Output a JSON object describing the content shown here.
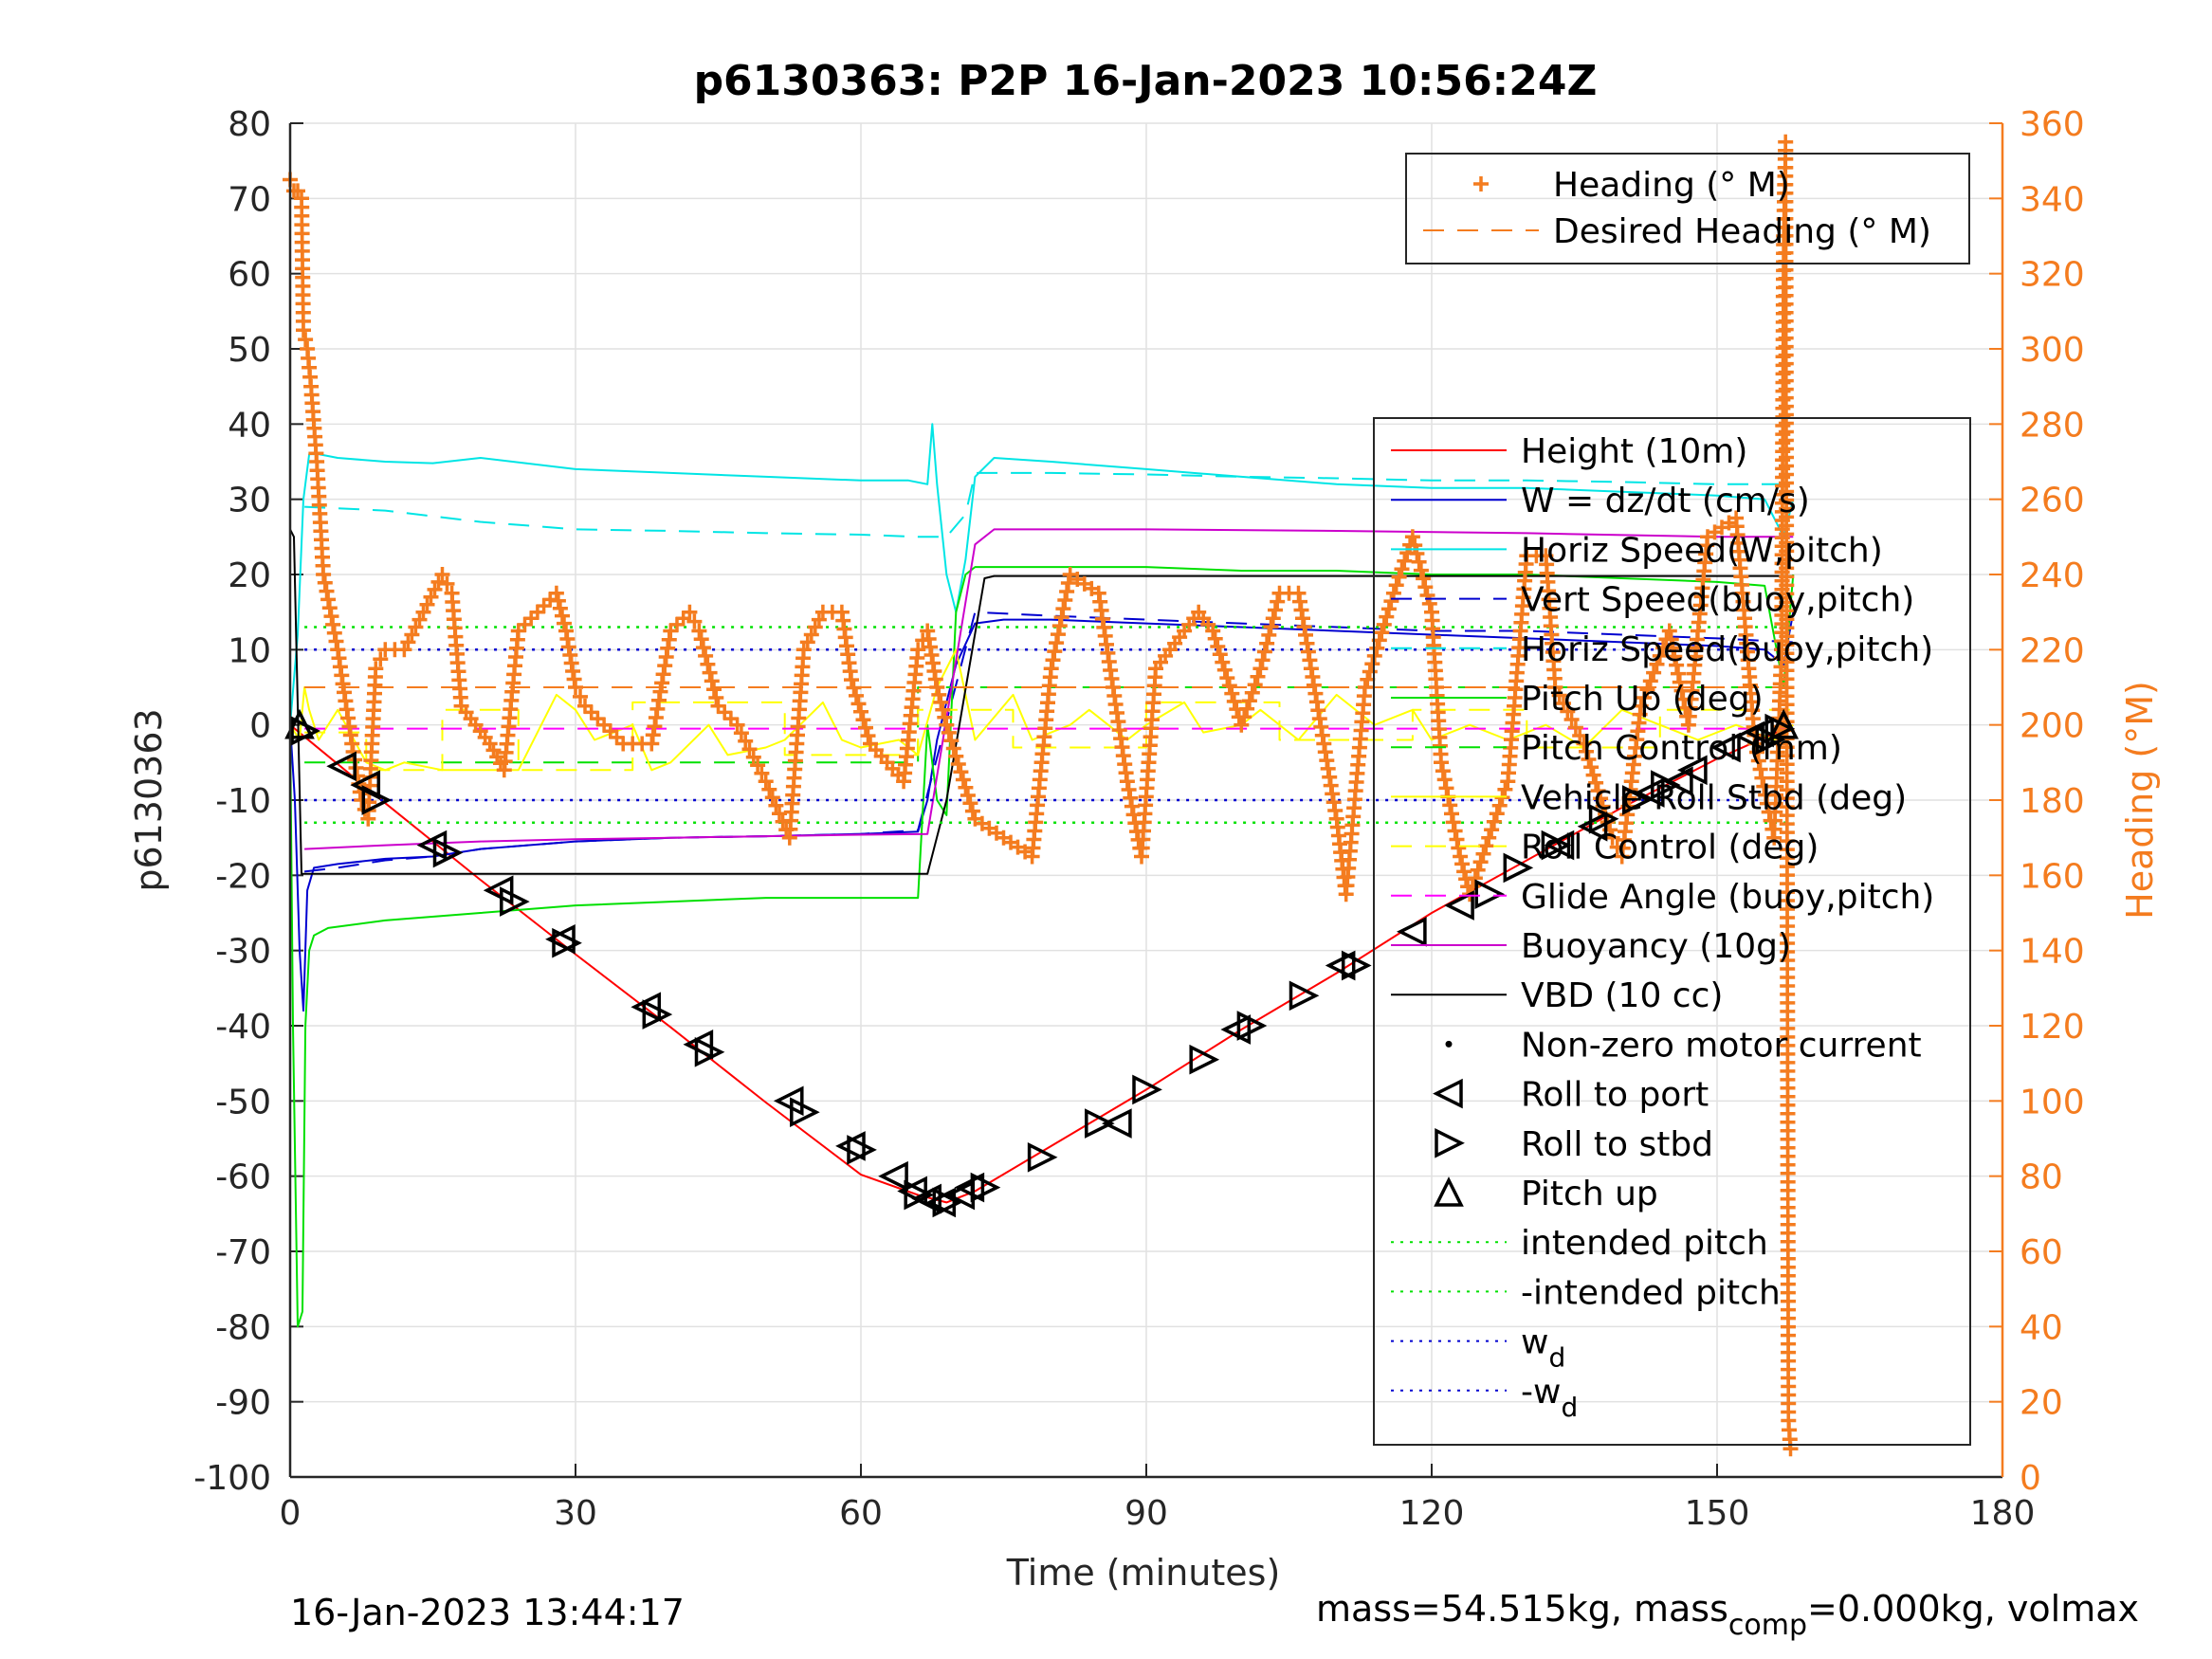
{
  "chart_data": {
    "type": "line",
    "title": "p6130363: P2P 16-Jan-2023 10:56:24Z",
    "xlabel": "Time (minutes)",
    "ylabel": "p6130363",
    "y2label": "Heading (°M)",
    "xlim": [
      0,
      180
    ],
    "ylim": [
      -100,
      80
    ],
    "y2lim": [
      0,
      360
    ],
    "xticks": [
      "0",
      "30",
      "60",
      "90",
      "120",
      "150",
      "180"
    ],
    "yticks": [
      "80",
      "70",
      "60",
      "50",
      "40",
      "30",
      "20",
      "10",
      "0",
      "-10",
      "-20",
      "-30",
      "-40",
      "-50",
      "-60",
      "-70",
      "-80",
      "-90",
      "-100"
    ],
    "y2ticks": [
      "360",
      "340",
      "320",
      "300",
      "280",
      "260",
      "240",
      "220",
      "200",
      "180",
      "160",
      "140",
      "120",
      "100",
      "80",
      "60",
      "40",
      "20",
      "0"
    ],
    "grid": true,
    "footer_left": "16-Jan-2023 13:44:17",
    "footer_right": {
      "pre": "mass=54.515kg, mass",
      "sub": "comp",
      "post": "=0.000kg, volmax"
    },
    "legend_top": {
      "placement": "top-right",
      "entries": [
        {
          "label": "Heading (° M)",
          "style": "marker-plus",
          "color": "#f47c1f"
        },
        {
          "label": "Desired Heading (° M)",
          "style": "dashed",
          "color": "#f47c1f"
        }
      ]
    },
    "legend_main": {
      "placement": "right",
      "entries": [
        {
          "label": "Height (10m)",
          "style": "solid",
          "color": "#ff0000"
        },
        {
          "label": "W = dz/dt (cm/s)",
          "style": "solid",
          "color": "#0000d0"
        },
        {
          "label": "Horiz Speed(W,pitch)",
          "style": "solid",
          "color": "#00e5e5"
        },
        {
          "label": "Vert Speed(buoy,pitch)",
          "style": "dashed",
          "color": "#0000d0"
        },
        {
          "label": "Horiz Speed(buoy,pitch)",
          "style": "dashed",
          "color": "#00e5e5"
        },
        {
          "label": "Pitch Up (deg)",
          "style": "solid",
          "color": "#00e000"
        },
        {
          "label": "Pitch Control (mm)",
          "style": "dashed",
          "color": "#00e000"
        },
        {
          "label": "Vehicle Roll Stbd (deg)",
          "style": "solid",
          "color": "#ffff00"
        },
        {
          "label": "Roll Control (deg)",
          "style": "dashed",
          "color": "#ffff00"
        },
        {
          "label": "Glide Angle (buoy,pitch)",
          "style": "dashed",
          "color": "#ff00ff"
        },
        {
          "label": "Buoyancy (10g)",
          "style": "solid",
          "color": "#cc00cc"
        },
        {
          "label": "VBD (10 cc)",
          "style": "solid",
          "color": "#000000"
        },
        {
          "label": "Non-zero motor current",
          "style": "dot",
          "color": "#000000"
        },
        {
          "label": "Roll to port",
          "style": "tri-left",
          "color": "#000000"
        },
        {
          "label": "Roll to stbd",
          "style": "tri-right",
          "color": "#000000"
        },
        {
          "label": "Pitch up",
          "style": "tri-up",
          "color": "#000000"
        },
        {
          "label": "intended pitch",
          "style": "dotted",
          "color": "#00e000"
        },
        {
          "label": "-intended pitch",
          "style": "dotted",
          "color": "#00e000"
        },
        {
          "label": "w",
          "sub": "d",
          "style": "dotted",
          "color": "#0000d0"
        },
        {
          "label": "-w",
          "sub": "d",
          "style": "dotted",
          "color": "#0000d0"
        }
      ]
    },
    "series": [
      {
        "name": "Height (10m)",
        "axis": "left",
        "color": "#ff0000",
        "style": "solid",
        "x": [
          0,
          10,
          20,
          30,
          40,
          50,
          60,
          66,
          69,
          72,
          80,
          90,
          100,
          110,
          120,
          130,
          140,
          150,
          158
        ],
        "y": [
          0,
          -10.4,
          -20.6,
          -30.5,
          -40.2,
          -50.2,
          -59.8,
          -62.5,
          -63.5,
          -62,
          -56,
          -48.5,
          -40.5,
          -33,
          -25,
          -18,
          -11,
          -4.5,
          0
        ]
      },
      {
        "name": "W = dz/dt (cm/s)",
        "axis": "left",
        "color": "#0000d0",
        "style": "solid",
        "x": [
          0,
          0.5,
          1.0,
          1.4,
          1.8,
          2.5,
          5,
          10,
          15,
          20,
          30,
          40,
          50,
          60,
          66,
          67,
          68,
          70,
          72,
          75,
          80,
          90,
          100,
          110,
          120,
          130,
          140,
          150,
          155,
          157,
          158
        ],
        "y": [
          0,
          -10,
          -30,
          -38,
          -22,
          -19,
          -18.5,
          -17.8,
          -17.5,
          -16.5,
          -15.5,
          -15,
          -14.8,
          -14.5,
          -14.2,
          -10,
          -2,
          8,
          13.5,
          14,
          14,
          13.5,
          13,
          12.5,
          12,
          11.5,
          11,
          10.5,
          10,
          8,
          15
        ]
      },
      {
        "name": "Horiz Speed(W,pitch)",
        "axis": "left",
        "color": "#00e5e5",
        "style": "solid",
        "x": [
          0,
          0.8,
          1.4,
          2,
          3,
          5,
          10,
          15,
          20,
          30,
          40,
          50,
          60,
          65,
          67,
          67.5,
          68,
          69,
          70,
          71,
          72,
          74,
          80,
          90,
          100,
          110,
          120,
          130,
          140,
          150,
          155,
          157,
          158
        ],
        "y": [
          0,
          12,
          30,
          36,
          36,
          35.5,
          35,
          34.8,
          35.5,
          34,
          33.5,
          33,
          32.5,
          32.5,
          32,
          40,
          32,
          20,
          15,
          22,
          33,
          35.5,
          35,
          34,
          33,
          32,
          31.5,
          31.5,
          31,
          30.5,
          30,
          25,
          30
        ]
      },
      {
        "name": "Vert Speed(buoy,pitch)",
        "axis": "left",
        "color": "#0000d0",
        "style": "dashed",
        "x": [
          1.5,
          5,
          10,
          15,
          20,
          30,
          40,
          50,
          60,
          66,
          72,
          80,
          90,
          100,
          110,
          120,
          130,
          140,
          150,
          158
        ],
        "y": [
          -19.5,
          -19,
          -18,
          -17.5,
          -16.5,
          -15.5,
          -15,
          -14.8,
          -14.5,
          -14,
          15,
          14.5,
          14,
          13.5,
          13,
          12.5,
          12.5,
          12,
          11.5,
          11
        ]
      },
      {
        "name": "Horiz Speed(buoy,pitch)",
        "axis": "left",
        "color": "#00e5e5",
        "style": "dashed",
        "x": [
          1.5,
          5,
          10,
          20,
          30,
          40,
          50,
          60,
          66,
          69,
          71,
          72,
          80,
          90,
          100,
          110,
          120,
          130,
          140,
          150,
          158
        ],
        "y": [
          29,
          28.8,
          28.5,
          27,
          26,
          25.8,
          25.5,
          25.3,
          25,
          25,
          28,
          33.5,
          33.5,
          33.3,
          33,
          32.8,
          32.5,
          32.5,
          32.3,
          32,
          32
        ]
      },
      {
        "name": "Pitch Up (deg)",
        "axis": "left",
        "color": "#00e000",
        "style": "solid",
        "x": [
          0,
          0.3,
          0.8,
          1.3,
          1.6,
          2,
          2.5,
          4,
          10,
          20,
          30,
          40,
          50,
          60,
          66,
          67,
          68,
          69,
          70,
          71,
          72,
          80,
          90,
          100,
          110,
          120,
          130,
          140,
          150,
          155,
          157,
          158
        ],
        "y": [
          0,
          -40,
          -80,
          -78,
          -40,
          -30,
          -28,
          -27,
          -26,
          -25,
          -24,
          -23.5,
          -23,
          -23,
          -23,
          0,
          -10,
          -12,
          15,
          20,
          21,
          21,
          21,
          20.5,
          20.5,
          20,
          20,
          19.5,
          19,
          18.5,
          5,
          20
        ]
      },
      {
        "name": "Pitch Control (mm)",
        "axis": "left",
        "color": "#00e000",
        "style": "dashed",
        "x": [
          1.5,
          66,
          66,
          158
        ],
        "y": [
          -5,
          -5,
          5,
          5
        ]
      },
      {
        "name": "Vehicle Roll Stbd (deg)",
        "axis": "left",
        "color": "#ffff00",
        "style": "solid",
        "x": [
          0,
          1,
          1.5,
          2,
          3,
          5,
          8,
          10,
          12,
          16,
          20,
          24,
          28,
          30,
          32,
          36,
          38,
          40,
          44,
          46,
          50,
          52,
          56,
          58,
          60,
          64,
          66,
          68,
          70,
          72,
          76,
          78,
          82,
          84,
          88,
          90,
          94,
          96,
          100,
          102,
          106,
          110,
          114,
          118,
          120,
          124,
          128,
          132,
          136,
          140,
          144,
          148,
          152,
          156,
          158
        ],
        "y": [
          0,
          -2,
          5,
          2,
          -2,
          2,
          -5,
          -6,
          -5,
          -6,
          -6,
          -6,
          4,
          2,
          -2,
          0,
          -6,
          -5,
          0,
          -4,
          -3,
          -2,
          3,
          -2,
          -3,
          -2,
          -4,
          5,
          10,
          -2,
          4,
          -2,
          0,
          2,
          -2,
          0,
          3,
          -1,
          0,
          2,
          -2,
          4,
          0,
          2,
          -2,
          0,
          -2,
          0,
          -3,
          2,
          0,
          -2,
          0,
          -2,
          0
        ]
      },
      {
        "name": "Roll Control (deg)",
        "axis": "left",
        "color": "#ffff00",
        "style": "dashed",
        "x": [
          1.5,
          8,
          8,
          16,
          16,
          24,
          24,
          36,
          36,
          52,
          52,
          66,
          66,
          76,
          76,
          90,
          90,
          104,
          104,
          118,
          118,
          130,
          130,
          144,
          144,
          158
        ],
        "y": [
          -1,
          -1,
          -6,
          -6,
          2,
          2,
          -6,
          -6,
          3,
          3,
          -4,
          -4,
          2,
          2,
          -3,
          -3,
          3,
          3,
          -2,
          -2,
          2,
          2,
          -3,
          -3,
          2,
          2
        ]
      },
      {
        "name": "Glide Angle (buoy,pitch)",
        "axis": "left",
        "color": "#ff00ff",
        "style": "dashed",
        "x": [
          1.5,
          158
        ],
        "y": [
          -0.5,
          -0.5
        ]
      },
      {
        "name": "Buoyancy (10g)",
        "axis": "left",
        "color": "#cc00cc",
        "style": "solid",
        "x": [
          1.5,
          10,
          20,
          30,
          40,
          50,
          60,
          67,
          72,
          74,
          90,
          110,
          130,
          150,
          158
        ],
        "y": [
          -16.5,
          -16,
          -15.5,
          -15.2,
          -15,
          -14.8,
          -14.6,
          -14.5,
          24,
          26,
          26,
          25.8,
          25.5,
          25,
          25
        ]
      },
      {
        "name": "VBD (10 cc)",
        "axis": "left",
        "color": "#000000",
        "style": "solid",
        "x": [
          0,
          0.4,
          1.2,
          1.5,
          10,
          30,
          50,
          67,
          69,
          73,
          74,
          158
        ],
        "y": [
          26,
          25,
          -19.8,
          -19.8,
          -19.8,
          -19.8,
          -19.8,
          -19.8,
          -10,
          19.5,
          19.8,
          19.8
        ]
      },
      {
        "name": "intended pitch",
        "axis": "left",
        "color": "#00e000",
        "style": "dotted",
        "x": [
          1.5,
          158
        ],
        "y": [
          13,
          13
        ]
      },
      {
        "name": "-intended pitch",
        "axis": "left",
        "color": "#00e000",
        "style": "dotted",
        "x": [
          1.5,
          158
        ],
        "y": [
          -13,
          -13
        ]
      },
      {
        "name": "w_d",
        "axis": "left",
        "color": "#0000d0",
        "style": "dotted",
        "x": [
          1.5,
          158
        ],
        "y": [
          10,
          10
        ]
      },
      {
        "name": "-w_d",
        "axis": "left",
        "color": "#0000d0",
        "style": "dotted",
        "x": [
          1.5,
          158
        ],
        "y": [
          -10,
          -10
        ]
      },
      {
        "name": "Desired Heading (° M)",
        "axis": "right",
        "color": "#f47c1f",
        "style": "dashed",
        "x": [
          1.5,
          158
        ],
        "y": [
          210,
          210
        ]
      }
    ],
    "heading_knots": {
      "x": [
        0,
        0.4,
        0.8,
        1.2,
        1.4,
        1.8,
        2.2,
        2.8,
        3.5,
        5,
        6.5,
        7.5,
        8.2,
        9,
        10,
        12,
        14,
        16,
        17,
        18,
        21,
        22.5,
        24,
        26,
        28,
        29,
        30,
        31,
        33,
        35,
        38,
        40,
        42,
        43,
        45,
        47,
        50,
        52.5,
        54,
        56,
        58,
        59,
        61,
        64.5,
        66,
        67,
        68,
        69,
        72,
        75,
        78,
        80,
        82,
        85,
        88,
        89.5,
        91,
        94,
        95.5,
        97,
        100,
        102,
        104,
        106,
        110,
        111,
        113,
        116,
        118,
        120,
        121,
        123,
        124,
        128,
        130,
        132,
        133,
        136,
        139,
        140,
        142,
        145,
        147,
        149,
        152,
        154,
        156,
        156.8,
        157,
        157.2,
        157.5,
        157.8
      ],
      "y": [
        345,
        342,
        342,
        340,
        305,
        300,
        290,
        270,
        240,
        220,
        195,
        180,
        175,
        215,
        220,
        220,
        230,
        240,
        235,
        205,
        195,
        188,
        225,
        230,
        235,
        225,
        210,
        205,
        200,
        195,
        195,
        225,
        230,
        225,
        205,
        200,
        185,
        170,
        220,
        230,
        230,
        212,
        195,
        185,
        220,
        225,
        210,
        200,
        175,
        170,
        165,
        215,
        240,
        235,
        185,
        165,
        215,
        225,
        230,
        225,
        200,
        215,
        235,
        235,
        175,
        155,
        210,
        235,
        250,
        230,
        190,
        165,
        155,
        185,
        245,
        245,
        210,
        195,
        170,
        165,
        205,
        225,
        200,
        250,
        255,
        195,
        170,
        220,
        330,
        355,
        15,
        5
      ]
    },
    "pitch_up_markers": {
      "x": [
        1,
        157
      ],
      "y": [
        0,
        0
      ]
    },
    "roll_port_markers": {
      "x": [
        5.5,
        8,
        15,
        22,
        28.5,
        37.5,
        43,
        52.5,
        59,
        63.5,
        65.5,
        67,
        68.5,
        70.5,
        71.5,
        87,
        99.5,
        110.5,
        118,
        123,
        133.5,
        137,
        143,
        146,
        147.5,
        151,
        153.5,
        154.5
      ],
      "y": [
        -5.5,
        -8,
        -16,
        -22,
        -28.5,
        -37.5,
        -42.5,
        -50,
        -56,
        -60,
        -62,
        -63,
        -63.5,
        -62.5,
        -61.5,
        -53,
        -40.5,
        -32,
        -27.5,
        -24,
        -16,
        -13.5,
        -9,
        -7.5,
        -6,
        -3,
        -1.5,
        -1
      ]
    },
    "roll_stbd_markers": {
      "x": [
        1.5,
        9,
        16.5,
        23.5,
        29,
        38.5,
        44,
        54,
        60,
        66,
        69,
        73,
        79,
        85,
        90,
        96,
        101,
        106.5,
        112,
        126,
        129,
        133,
        138,
        141.5,
        144.5,
        155.5,
        156.5
      ],
      "y": [
        -0.8,
        -10,
        -17,
        -23.5,
        -29,
        -38.5,
        -43.5,
        -51.5,
        -56.5,
        -62.5,
        -63.5,
        -61.5,
        -57.5,
        -53,
        -48.5,
        -44.5,
        -40,
        -36,
        -32,
        -22.5,
        -19,
        -16,
        -12.5,
        -10,
        -8,
        -2,
        -0.5
      ]
    }
  }
}
